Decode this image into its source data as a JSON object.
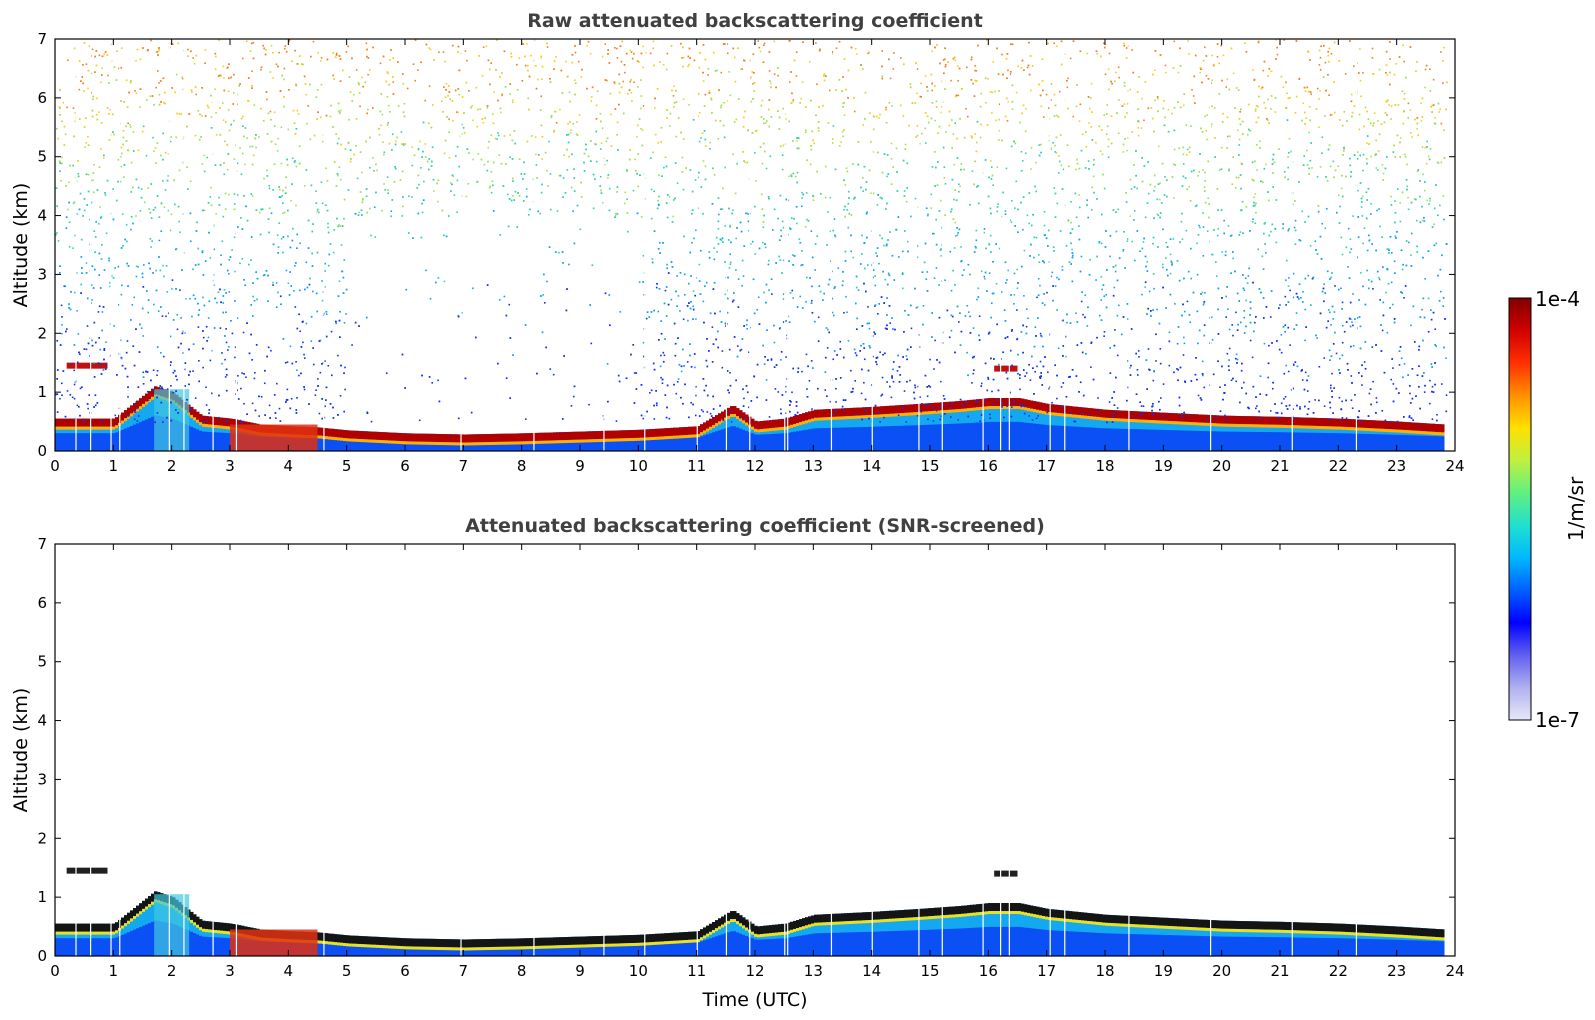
{
  "chart_data": [
    {
      "type": "heatmap",
      "title": "Raw attenuated backscattering coefficient",
      "xlabel": "",
      "ylabel": "Altitude (km)",
      "xlim": [
        0,
        24
      ],
      "ylim": [
        0,
        7
      ],
      "x_ticks": [
        "0",
        "1",
        "2",
        "3",
        "4",
        "5",
        "6",
        "7",
        "8",
        "9",
        "10",
        "11",
        "12",
        "13",
        "14",
        "15",
        "16",
        "17",
        "18",
        "19",
        "20",
        "21",
        "22",
        "23",
        "24"
      ],
      "y_ticks": [
        "0",
        "1",
        "2",
        "3",
        "4",
        "5",
        "6",
        "7"
      ],
      "data_end_hour": 23.85,
      "layer_top_km": {
        "x": [
          0,
          1,
          1.7,
          2,
          2.5,
          3,
          3.5,
          4,
          4.5,
          5,
          6,
          7,
          8,
          9,
          10,
          11,
          11.6,
          12,
          12.5,
          13,
          14,
          14.8,
          15.5,
          16,
          16.5,
          17,
          17.5,
          18,
          19,
          20,
          21,
          22,
          23,
          23.8
        ],
        "y": [
          0.55,
          0.55,
          1.1,
          1.0,
          0.6,
          0.55,
          0.45,
          0.42,
          0.4,
          0.35,
          0.3,
          0.28,
          0.3,
          0.33,
          0.36,
          0.42,
          0.78,
          0.5,
          0.55,
          0.7,
          0.75,
          0.8,
          0.85,
          0.9,
          0.9,
          0.8,
          0.75,
          0.7,
          0.65,
          0.6,
          0.58,
          0.55,
          0.5,
          0.45
        ]
      },
      "elevated_features_km": [
        {
          "x": [
            0.2,
            0.9
          ],
          "y": 1.45
        },
        {
          "x": [
            16.1,
            16.5
          ],
          "y": 1.4
        }
      ]
    },
    {
      "type": "heatmap",
      "title": "Attenuated backscattering coefficient (SNR-screened)",
      "xlabel": "Time (UTC)",
      "ylabel": "Altitude (km)",
      "xlim": [
        0,
        24
      ],
      "ylim": [
        0,
        7
      ],
      "x_ticks": [
        "0",
        "1",
        "2",
        "3",
        "4",
        "5",
        "6",
        "7",
        "8",
        "9",
        "10",
        "11",
        "12",
        "13",
        "14",
        "15",
        "16",
        "17",
        "18",
        "19",
        "20",
        "21",
        "22",
        "23",
        "24"
      ],
      "y_ticks": [
        "0",
        "1",
        "2",
        "3",
        "4",
        "5",
        "6",
        "7"
      ],
      "data_end_hour": 23.85
    }
  ],
  "colorbar": {
    "label": "1/m/sr",
    "max_label": "1e-4",
    "min_label": "1e-7",
    "scale": "log",
    "range": [
      1e-07,
      0.0001
    ],
    "colormap": [
      "#e8e8f8",
      "#b0b0f0",
      "#6060f0",
      "#0000ff",
      "#0060ff",
      "#00b8ff",
      "#20e0d0",
      "#60f080",
      "#c0f040",
      "#ffe000",
      "#ff9000",
      "#ff3000",
      "#d00000",
      "#800000"
    ]
  }
}
